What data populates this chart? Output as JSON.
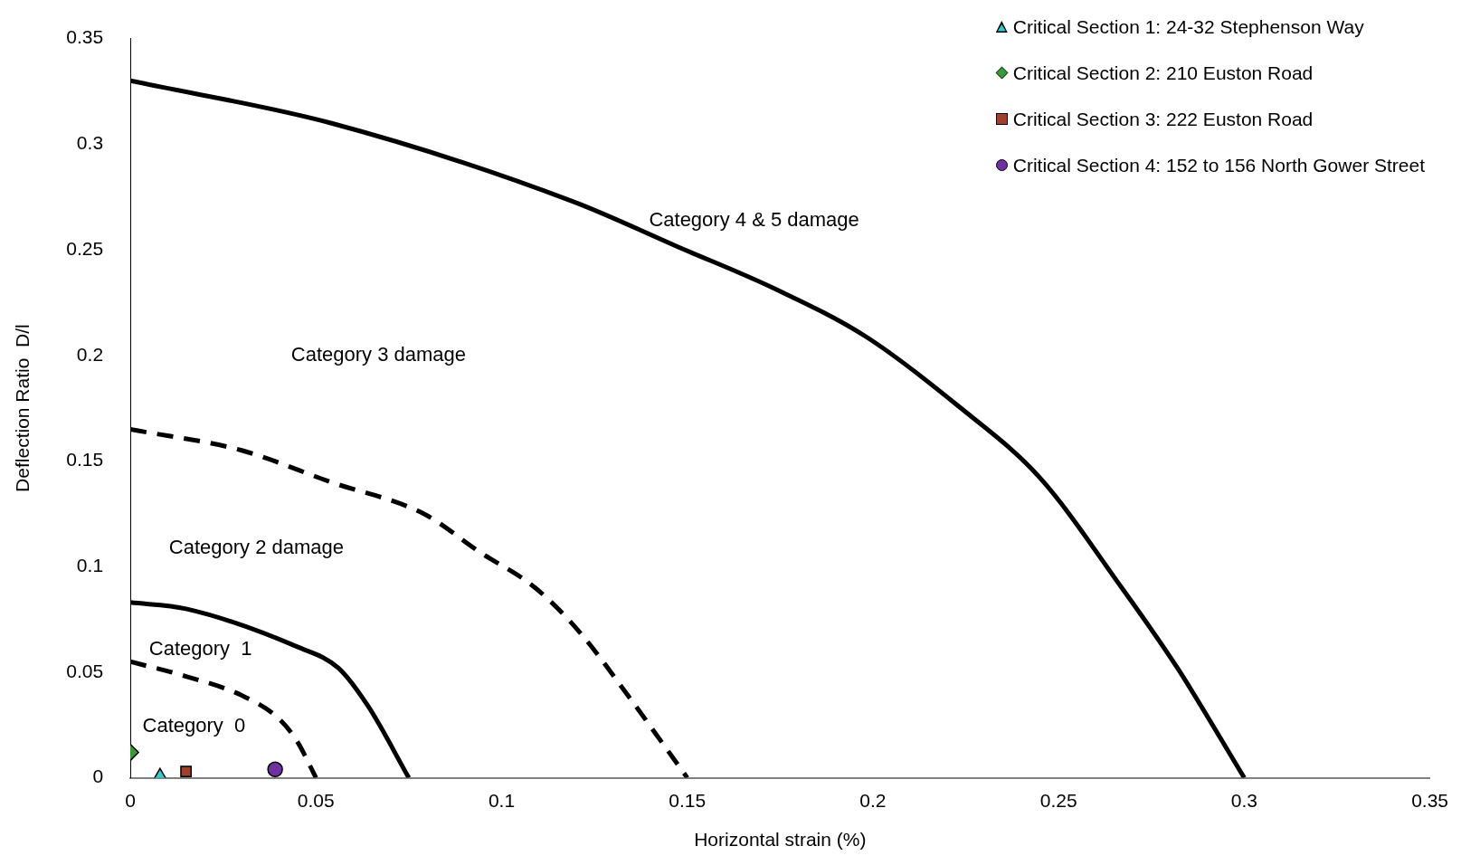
{
  "chart_data": {
    "type": "line",
    "xlabel": "Horizontal strain (%)",
    "ylabel": "Deflection Ratio  D/l",
    "xlim": [
      0,
      0.35
    ],
    "xticks": [
      0,
      0.05,
      0.1,
      0.15,
      0.2,
      0.25,
      0.3,
      0.35
    ],
    "ylim": [
      0,
      0.35
    ],
    "yticks": [
      0,
      0.05,
      0.1,
      0.15,
      0.2,
      0.25,
      0.3,
      0.35
    ],
    "grid": false,
    "legend": "top right",
    "line_style": "solid",
    "marker": "none",
    "series": [
      {
        "color": "#000000",
        "x": [
          0,
          0.054,
          0.119,
          0.148,
          0.173,
          0.198,
          0.223,
          0.245,
          0.267,
          0.282,
          0.3
        ],
        "values": [
          0.33,
          0.31,
          0.273,
          0.251,
          0.232,
          0.209,
          0.176,
          0.142,
          0.09,
          0.052,
          0
        ]
      },
      {
        "color": "#000000",
        "line_style": "dashed",
        "x": [
          0,
          0.03,
          0.054,
          0.079,
          0.094,
          0.109,
          0.121,
          0.134,
          0.15
        ],
        "values": [
          0.165,
          0.155,
          0.14,
          0.125,
          0.107,
          0.09,
          0.069,
          0.039,
          0
        ]
      },
      {
        "color": "#000000",
        "x": [
          0,
          0.015,
          0.045,
          0.056,
          0.064,
          0.075
        ],
        "values": [
          0.083,
          0.08,
          0.062,
          0.052,
          0.034,
          0
        ]
      },
      {
        "color": "#000000",
        "line_style": "dashed",
        "x": [
          0,
          0.015,
          0.03,
          0.04,
          0.045,
          0.05
        ],
        "values": [
          0.055,
          0.048,
          0.039,
          0.028,
          0.017,
          0
        ]
      },
      {
        "type": "scatter",
        "name": "Critical Section 1: 24-32 Stephenson Way",
        "color": "#33cccc",
        "marker": "triangle",
        "x": [
          0.008
        ],
        "values": [
          0.001
        ]
      },
      {
        "type": "scatter",
        "name": "Critical Section 2: 210 Euston Road",
        "color": "#3a9a3a",
        "marker": "diamond",
        "x": [
          0
        ],
        "values": [
          0.012
        ]
      },
      {
        "type": "scatter",
        "name": "Critical Section 3: 222 Euston Road",
        "color": "#a0402a",
        "marker": "square",
        "x": [
          0.015
        ],
        "values": [
          0.003
        ]
      },
      {
        "type": "scatter",
        "name": "Critical Section 4: 152 to 156 North Gower Street",
        "color": "#7030a0",
        "marker": "circle",
        "x": [
          0.039
        ],
        "values": [
          0.004
        ]
      }
    ],
    "annotations": [
      "Category 4 & 5 damage",
      "Category 3 damage",
      "Category 2 damage",
      "Category  1",
      "Category  0"
    ]
  }
}
